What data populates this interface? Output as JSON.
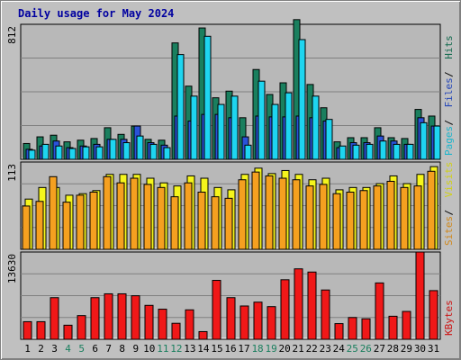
{
  "title": "Daily usage for May 2024",
  "colors": {
    "hits": "#1a7f5e",
    "files": "#2a52d8",
    "pages": "#1ed5f0",
    "visits": "#f5f51c",
    "sites": "#f5a020",
    "kbytes": "#f01818",
    "weekend_label": "#1a7f5e",
    "weekday_label": "#000000"
  },
  "chart_data": [
    {
      "type": "bar",
      "panel": "top",
      "title": "Daily usage for May 2024",
      "y_tick_label": "812",
      "ylim": [
        0,
        812
      ],
      "side_labels": [
        "Hits",
        "Files",
        "Pages"
      ],
      "categories": [
        "1",
        "2",
        "3",
        "4",
        "5",
        "6",
        "7",
        "8",
        "9",
        "10",
        "11",
        "12",
        "13",
        "14",
        "15",
        "16",
        "17",
        "18",
        "19",
        "20",
        "21",
        "22",
        "23",
        "24",
        "25",
        "26",
        "27",
        "28",
        "29",
        "30",
        "31"
      ],
      "weekend": [
        4,
        5,
        11,
        12,
        18,
        19,
        25,
        26
      ],
      "series": [
        {
          "name": "Hits",
          "values": [
            95,
            135,
            145,
            105,
            115,
            125,
            190,
            150,
            200,
            120,
            115,
            700,
            440,
            790,
            370,
            410,
            250,
            540,
            390,
            460,
            840,
            450,
            310,
            105,
            130,
            130,
            190,
            130,
            125,
            300,
            260
          ]
        },
        {
          "name": "Files",
          "values": [
            60,
            80,
            110,
            70,
            80,
            90,
            120,
            120,
            200,
            100,
            85,
            260,
            230,
            270,
            270,
            250,
            135,
            260,
            255,
            255,
            260,
            250,
            230,
            70,
            100,
            100,
            140,
            110,
            90,
            250,
            200
          ]
        },
        {
          "name": "Pages",
          "values": [
            55,
            90,
            80,
            65,
            75,
            75,
            120,
            100,
            140,
            90,
            70,
            630,
            380,
            740,
            330,
            380,
            85,
            470,
            330,
            400,
            720,
            380,
            240,
            80,
            85,
            90,
            110,
            90,
            90,
            220,
            200
          ]
        }
      ]
    },
    {
      "type": "bar",
      "panel": "middle",
      "y_tick_label": "113",
      "ylim": [
        0,
        113
      ],
      "side_labels": [
        "Visits",
        "Sites"
      ],
      "categories": [
        "1",
        "2",
        "3",
        "4",
        "5",
        "6",
        "7",
        "8",
        "9",
        "10",
        "11",
        "12",
        "13",
        "14",
        "15",
        "16",
        "17",
        "18",
        "19",
        "20",
        "21",
        "22",
        "23",
        "24",
        "25",
        "26",
        "27",
        "28",
        "29",
        "30",
        "31"
      ],
      "series": [
        {
          "name": "Visits",
          "values": [
            65,
            80,
            80,
            70,
            72,
            76,
            97,
            97,
            97,
            92,
            86,
            82,
            95,
            92,
            80,
            77,
            97,
            105,
            98,
            102,
            97,
            90,
            92,
            77,
            80,
            80,
            85,
            95,
            85,
            97,
            107
          ]
        },
        {
          "name": "Sites",
          "values": [
            56,
            62,
            94,
            61,
            70,
            74,
            94,
            86,
            92,
            84,
            80,
            68,
            86,
            74,
            68,
            66,
            90,
            100,
            95,
            92,
            90,
            82,
            84,
            72,
            74,
            76,
            82,
            88,
            80,
            82,
            101
          ]
        }
      ]
    },
    {
      "type": "bar",
      "panel": "bottom",
      "y_tick_label": "13630",
      "ylim": [
        0,
        13630
      ],
      "side_labels": [
        "KBytes"
      ],
      "categories": [
        "1",
        "2",
        "3",
        "4",
        "5",
        "6",
        "7",
        "8",
        "9",
        "10",
        "11",
        "12",
        "13",
        "14",
        "15",
        "16",
        "17",
        "18",
        "19",
        "20",
        "21",
        "22",
        "23",
        "24",
        "25",
        "26",
        "27",
        "28",
        "29",
        "30",
        "31"
      ],
      "series": [
        {
          "name": "KBytes",
          "values": [
            2750,
            2750,
            6500,
            2200,
            3700,
            6500,
            7100,
            7100,
            6800,
            5300,
            4700,
            2500,
            4600,
            1200,
            9200,
            6500,
            5200,
            5800,
            5100,
            9300,
            11000,
            10500,
            7700,
            2450,
            3400,
            3200,
            8800,
            3600,
            4350,
            13630,
            7600
          ]
        }
      ]
    }
  ]
}
